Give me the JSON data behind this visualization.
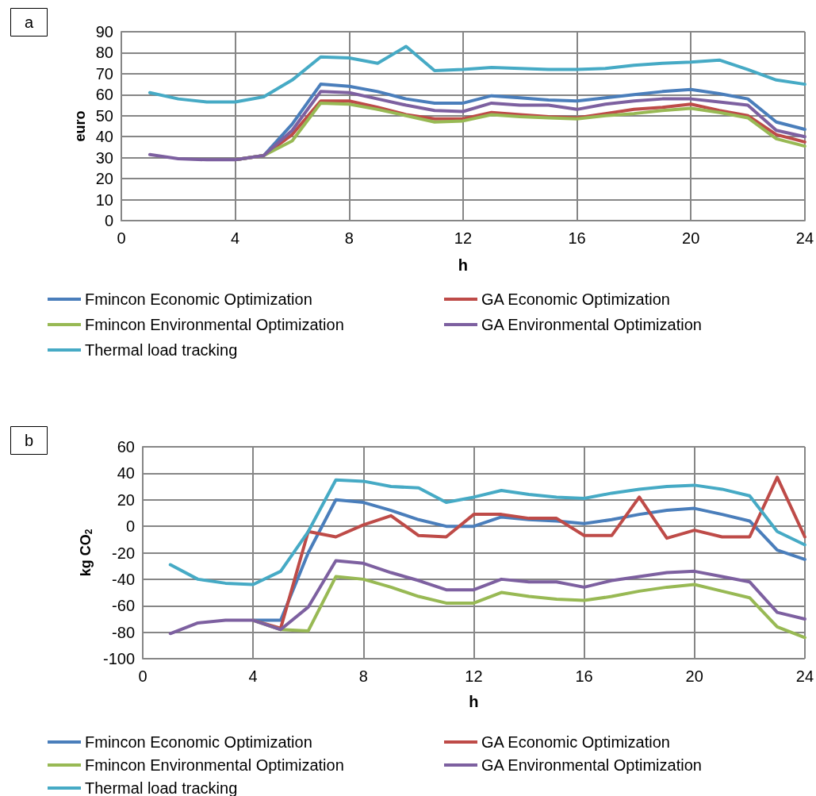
{
  "chart_data": [
    {
      "type": "line",
      "annotations": [
        "a"
      ],
      "xlabel": "h",
      "ylabel": "euro",
      "x": [
        1,
        2,
        3,
        4,
        5,
        6,
        7,
        8,
        9,
        10,
        11,
        12,
        13,
        14,
        15,
        16,
        17,
        18,
        19,
        20,
        21,
        22,
        23,
        24
      ],
      "xlim": [
        0,
        24
      ],
      "xticks": [
        0,
        4,
        8,
        12,
        16,
        20,
        24
      ],
      "ylim": [
        0,
        90
      ],
      "yticks": [
        0,
        10,
        20,
        30,
        40,
        50,
        60,
        70,
        80,
        90
      ],
      "grid": true,
      "legend": "bottom",
      "marker": "none",
      "line_style": "solid",
      "series": [
        {
          "name": "Fmincon Economic Optimization",
          "color": "#4a7ebb",
          "values": [
            null,
            null,
            null,
            29,
            31,
            46,
            65,
            64,
            61.5,
            58,
            56,
            56,
            59.5,
            58.5,
            57.5,
            57,
            58.5,
            60,
            61.5,
            62.5,
            60.5,
            58,
            47,
            43.5
          ]
        },
        {
          "name": "GA Economic Optimization",
          "color": "#be4b48",
          "values": [
            null,
            null,
            null,
            29,
            31,
            41,
            57,
            57,
            54,
            50.5,
            48.5,
            48.5,
            51.5,
            50.5,
            49.5,
            49,
            51,
            53,
            54,
            55.5,
            52.5,
            50,
            41,
            37.5
          ]
        },
        {
          "name": "Fmincon Environmental Optimization",
          "color": "#98b954",
          "values": [
            null,
            null,
            null,
            29,
            31,
            38,
            56,
            55.5,
            53,
            50,
            47,
            47.5,
            50.5,
            49.5,
            49,
            48.5,
            50,
            51,
            52.5,
            53.5,
            51.5,
            49,
            39,
            35.5
          ]
        },
        {
          "name": "GA Environmental Optimization",
          "color": "#7d60a0",
          "values": [
            31.5,
            29.5,
            29,
            29,
            31,
            43,
            61.5,
            61,
            58,
            55,
            52.5,
            52,
            56,
            55,
            55,
            53,
            55.5,
            57,
            58,
            58,
            56.5,
            55,
            43,
            40
          ]
        },
        {
          "name": "Thermal load tracking",
          "color": "#46aac5",
          "values": [
            61,
            58,
            56.5,
            56.5,
            59,
            67,
            78,
            77.5,
            75,
            83,
            71.5,
            72,
            73,
            72.5,
            72,
            72,
            72.5,
            74,
            75,
            75.5,
            76.5,
            72,
            67,
            65
          ]
        }
      ]
    },
    {
      "type": "line",
      "annotations": [
        "b"
      ],
      "xlabel": "h",
      "ylabel": "kg CO$_{2}$",
      "x": [
        1,
        2,
        3,
        4,
        5,
        6,
        7,
        8,
        9,
        10,
        11,
        12,
        13,
        14,
        15,
        16,
        17,
        18,
        19,
        20,
        21,
        22,
        23,
        24
      ],
      "xlim": [
        0,
        24
      ],
      "xticks": [
        0,
        4,
        8,
        12,
        16,
        20,
        24
      ],
      "ylim": [
        -100,
        60
      ],
      "yticks": [
        -100,
        -80,
        -60,
        -40,
        -20,
        0,
        20,
        40,
        60
      ],
      "grid": true,
      "legend": "bottom",
      "marker": "none",
      "line_style": "solid",
      "series": [
        {
          "name": "Fmincon Economic Optimization",
          "color": "#4a7ebb",
          "values": [
            null,
            null,
            null,
            -71,
            -71,
            -20,
            20,
            18,
            12,
            5,
            0,
            0,
            7,
            5,
            4,
            2,
            5,
            9,
            12,
            13.5,
            9,
            4,
            -18,
            -25
          ]
        },
        {
          "name": "GA Economic Optimization",
          "color": "#be4b48",
          "values": [
            null,
            null,
            null,
            -71,
            -77,
            -4,
            -8,
            1,
            8,
            -7,
            -8,
            9,
            9,
            6,
            6,
            -7,
            -7,
            22,
            -9,
            -3,
            -8,
            -8,
            37,
            -8
          ]
        },
        {
          "name": "Fmincon Environmental Optimization",
          "color": "#98b954",
          "values": [
            null,
            null,
            null,
            -71,
            -78,
            -79,
            -38,
            -40,
            -46,
            -53,
            -58,
            -58,
            -50,
            -53,
            -55,
            -56,
            -53,
            -49,
            -46,
            -44,
            -49,
            -54,
            -76,
            -84
          ]
        },
        {
          "name": "GA Environmental Optimization",
          "color": "#7d60a0",
          "values": [
            -81,
            -73,
            -71,
            -71,
            -78,
            -61,
            -26,
            -28,
            -35,
            -41,
            -48,
            -48,
            -40,
            -42,
            -42,
            -46,
            -41,
            -38,
            -35,
            -34,
            -38,
            -42,
            -65,
            -70
          ]
        },
        {
          "name": "Thermal load tracking",
          "color": "#46aac5",
          "values": [
            -29,
            -40,
            -43,
            -44,
            -34,
            -4,
            35,
            34,
            30,
            29,
            18,
            22,
            27,
            24,
            22,
            21,
            25,
            28,
            30,
            31,
            28,
            23,
            -4,
            -14
          ]
        }
      ]
    }
  ]
}
